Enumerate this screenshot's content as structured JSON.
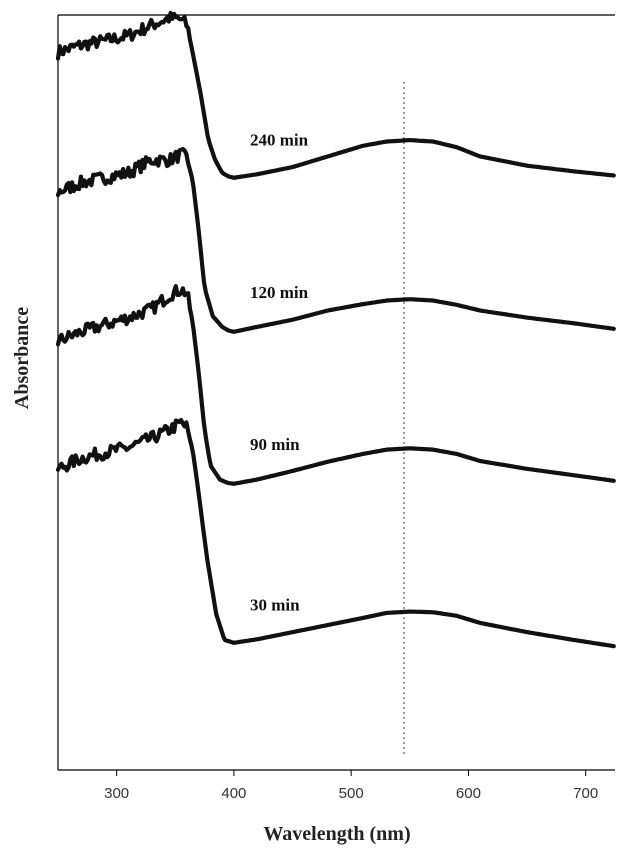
{
  "chart_data": {
    "type": "line",
    "xlabel": "Wavelength (nm)",
    "ylabel": "Absorbance",
    "xlim": [
      250,
      725
    ],
    "xticks": [
      300,
      400,
      500,
      600,
      700
    ],
    "yticks_shown": false,
    "grid": false,
    "reference_line": {
      "x": 545,
      "style": "dotted"
    },
    "series": [
      {
        "name": "240 min",
        "x": [
          250,
          270,
          290,
          310,
          330,
          345,
          355,
          360,
          365,
          372,
          378,
          384,
          390,
          395,
          400,
          420,
          450,
          480,
          510,
          530,
          550,
          570,
          590,
          610,
          650,
          690,
          725
        ],
        "y": [
          0.952,
          0.962,
          0.968,
          0.975,
          0.99,
          1.0,
          0.998,
          0.99,
          0.95,
          0.89,
          0.83,
          0.8,
          0.782,
          0.777,
          0.775,
          0.78,
          0.79,
          0.805,
          0.82,
          0.826,
          0.828,
          0.826,
          0.818,
          0.805,
          0.792,
          0.784,
          0.778
        ]
      },
      {
        "name": "120 min",
        "x": [
          250,
          270,
          290,
          310,
          330,
          345,
          355,
          360,
          365,
          370,
          375,
          382,
          390,
          395,
          400,
          420,
          450,
          480,
          510,
          530,
          550,
          570,
          590,
          610,
          650,
          690,
          725
        ],
        "y": [
          0.755,
          0.768,
          0.775,
          0.782,
          0.8,
          0.8,
          0.808,
          0.803,
          0.77,
          0.7,
          0.62,
          0.58,
          0.565,
          0.56,
          0.558,
          0.565,
          0.575,
          0.588,
          0.597,
          0.602,
          0.604,
          0.602,
          0.596,
          0.588,
          0.578,
          0.57,
          0.562
        ]
      },
      {
        "name": "90 min",
        "x": [
          250,
          270,
          290,
          310,
          330,
          345,
          355,
          360,
          365,
          370,
          375,
          380,
          388,
          395,
          400,
          420,
          450,
          480,
          510,
          530,
          550,
          570,
          590,
          610,
          650,
          690,
          725
        ],
        "y": [
          0.545,
          0.558,
          0.568,
          0.578,
          0.59,
          0.61,
          0.618,
          0.612,
          0.57,
          0.5,
          0.42,
          0.37,
          0.35,
          0.345,
          0.344,
          0.35,
          0.362,
          0.375,
          0.386,
          0.392,
          0.394,
          0.392,
          0.386,
          0.376,
          0.365,
          0.356,
          0.348
        ]
      },
      {
        "name": "30 min",
        "x": [
          250,
          270,
          290,
          310,
          330,
          345,
          355,
          360,
          365,
          370,
          377,
          385,
          392,
          400,
          420,
          450,
          480,
          510,
          530,
          550,
          570,
          590,
          610,
          650,
          690,
          725
        ],
        "y": [
          0.365,
          0.38,
          0.388,
          0.395,
          0.408,
          0.42,
          0.43,
          0.423,
          0.39,
          0.33,
          0.24,
          0.16,
          0.124,
          0.12,
          0.125,
          0.135,
          0.145,
          0.155,
          0.162,
          0.164,
          0.163,
          0.158,
          0.148,
          0.135,
          0.124,
          0.115
        ]
      }
    ]
  }
}
